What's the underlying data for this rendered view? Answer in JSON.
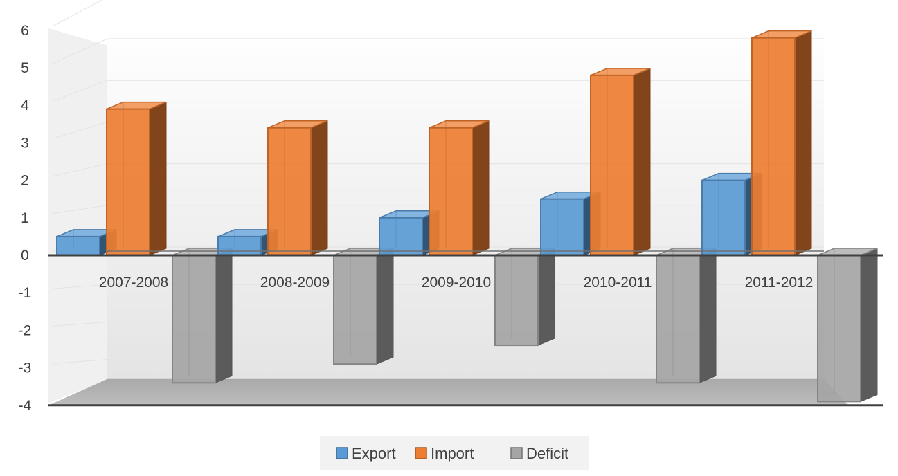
{
  "chart_data": {
    "type": "bar",
    "title": "",
    "xlabel": "",
    "ylabel": "",
    "categories": [
      "2007-2008",
      "2008-2009",
      "2009-2010",
      "2010-2011",
      "2011-2012"
    ],
    "series": [
      {
        "name": "Export",
        "values": [
          0.5,
          0.5,
          1.0,
          1.5,
          2.0
        ],
        "color": "#5b9bd5"
      },
      {
        "name": "Import",
        "values": [
          3.9,
          3.4,
          3.4,
          4.8,
          5.8
        ],
        "color": "#ed7d31"
      },
      {
        "name": "Deficit",
        "values": [
          -3.4,
          -2.9,
          -2.4,
          -3.4,
          -3.9
        ],
        "color": "#a5a5a5"
      }
    ],
    "ylim": [
      -4,
      6
    ],
    "yticks": [
      "6",
      "5",
      "4",
      "3",
      "2",
      "1",
      "0",
      "-1",
      "-2",
      "-3",
      "-4"
    ],
    "grid": true,
    "legend_position": "bottom",
    "style": "3d-column"
  }
}
